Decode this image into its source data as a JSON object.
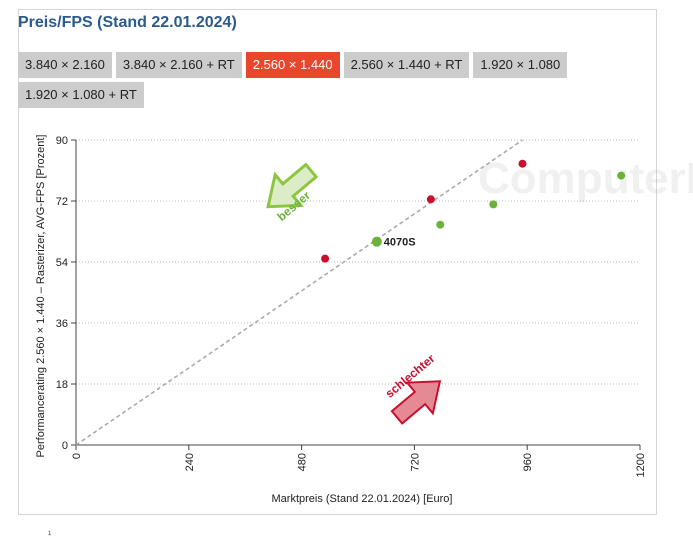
{
  "title": "Preis/FPS (Stand 22.01.2024)",
  "tabs": [
    {
      "label": "3.840 × 2.160",
      "active": false
    },
    {
      "label": "3.840 × 2.160 + RT",
      "active": false
    },
    {
      "label": "2.560 × 1.440",
      "active": true
    },
    {
      "label": "2.560 × 1.440 + RT",
      "active": false
    },
    {
      "label": "1.920 × 1.080",
      "active": false
    },
    {
      "label": "1.920 × 1.080 + RT",
      "active": false
    }
  ],
  "watermark": "ComputerBase",
  "arrows": {
    "better_label": "besser",
    "worse_label": "schlechter"
  },
  "colors": {
    "accent": "#e8472e",
    "title": "#2c5a8c",
    "green": "#6cb23a",
    "red": "#c8102e",
    "better_arrow": "#8cc63f",
    "worse_arrow": "#d94a5a"
  },
  "chart_data": {
    "type": "scatter",
    "xlabel": "Marktpreis (Stand 22.01.2024) [Euro]",
    "ylabel": "Performancerating 2.560 × 1.440 – Rasterizer, AVG-FPS [Prozent]",
    "xlim": [
      0,
      1200
    ],
    "ylim": [
      0,
      90
    ],
    "xticks": [
      0,
      240,
      480,
      720,
      960,
      1200
    ],
    "yticks": [
      0,
      18,
      36,
      54,
      72,
      90
    ],
    "grid": "horizontal dotted",
    "reference_line": {
      "from": [
        0,
        0
      ],
      "to": [
        950,
        90
      ]
    },
    "series": [
      {
        "color": "green",
        "points": [
          [
            640,
            60
          ],
          [
            775,
            65
          ],
          [
            888,
            71
          ],
          [
            1160,
            79.5
          ]
        ]
      },
      {
        "color": "red",
        "points": [
          [
            530,
            55
          ],
          [
            755,
            72.5
          ],
          [
            950,
            83
          ]
        ]
      }
    ],
    "highlight": {
      "label": "4070S",
      "x": 640,
      "y": 60
    }
  },
  "footnote": "¹"
}
